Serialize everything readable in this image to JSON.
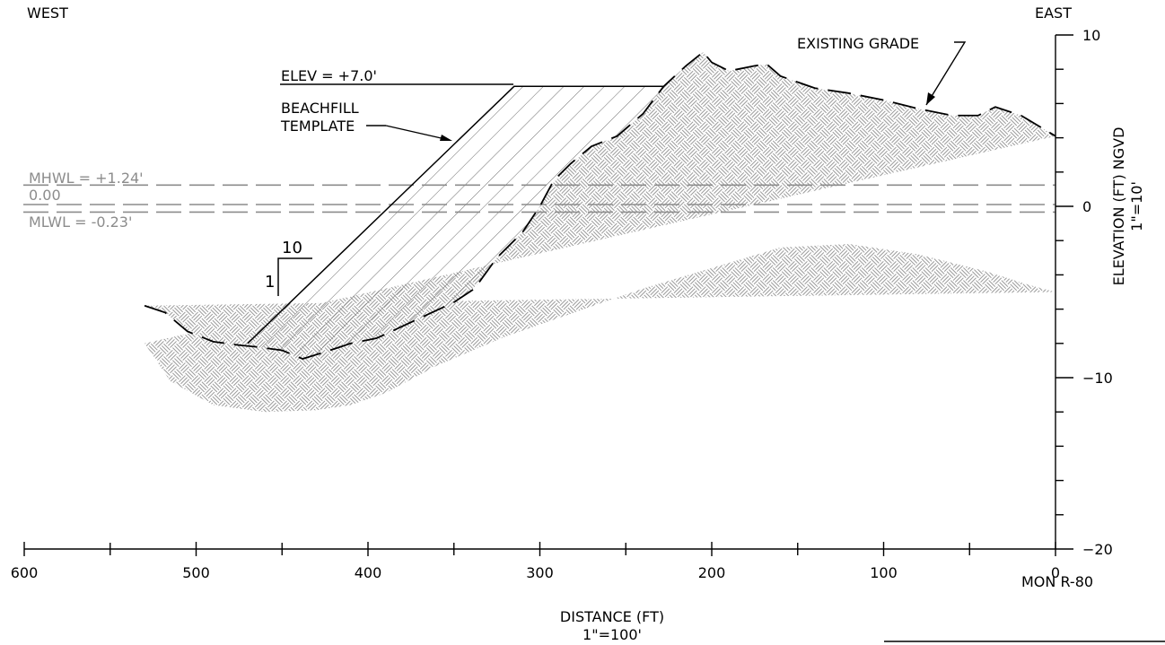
{
  "chart_data": {
    "type": "cross-section",
    "labels": {
      "west": "WEST",
      "east": "EAST",
      "existing_grade": "EXISTING GRADE",
      "elev": "ELEV  =  +7.0'",
      "template_line1": "BEACHFILL",
      "template_line2": "TEMPLATE",
      "mhwl": "MHWL  =  +1.24'",
      "zero": "0.00",
      "mlwl": "MLWL  =  -0.23'",
      "slope_run": "10",
      "slope_rise": "1",
      "mon": "MON  R-80",
      "xlabel": "DISTANCE  (FT)",
      "xscale": "1\"=100'",
      "ylabel": "ELEVATION  (FT)  NGVD",
      "yscale": "1\"=10'"
    },
    "x_axis": {
      "reversed": true,
      "range": [
        0,
        600
      ],
      "major_ticks": [
        600,
        500,
        400,
        300,
        200,
        100,
        0
      ],
      "minor_step": 50
    },
    "y_axis": {
      "range": [
        -20,
        10
      ],
      "major_ticks": [
        10,
        0,
        -10,
        -20
      ],
      "minor_step": 2
    },
    "water_levels": {
      "mhwl": 1.24,
      "zero": 0.0,
      "mlwl": -0.23
    },
    "template_elevation": 7.0,
    "template_slope_run_per_rise": 10,
    "existing_grade": [
      [
        530,
        -5.8
      ],
      [
        518,
        -6.2
      ],
      [
        505,
        -7.3
      ],
      [
        490,
        -7.9
      ],
      [
        475,
        -8.1
      ],
      [
        465,
        -8.2
      ],
      [
        450,
        -8.4
      ],
      [
        438,
        -8.9
      ],
      [
        425,
        -8.5
      ],
      [
        410,
        -8.0
      ],
      [
        395,
        -7.7
      ],
      [
        380,
        -7.0
      ],
      [
        365,
        -6.3
      ],
      [
        350,
        -5.6
      ],
      [
        338,
        -4.8
      ],
      [
        325,
        -3.0
      ],
      [
        310,
        -1.5
      ],
      [
        300,
        0.0
      ],
      [
        292,
        1.5
      ],
      [
        282,
        2.5
      ],
      [
        270,
        3.5
      ],
      [
        255,
        4.1
      ],
      [
        240,
        5.4
      ],
      [
        228,
        7.0
      ],
      [
        215,
        8.2
      ],
      [
        205,
        9.0
      ],
      [
        200,
        8.4
      ],
      [
        190,
        7.9
      ],
      [
        175,
        8.2
      ],
      [
        168,
        8.3
      ],
      [
        160,
        7.6
      ],
      [
        140,
        6.9
      ],
      [
        120,
        6.6
      ],
      [
        100,
        6.2
      ],
      [
        80,
        5.7
      ],
      [
        60,
        5.3
      ],
      [
        45,
        5.3
      ],
      [
        35,
        5.8
      ],
      [
        20,
        5.3
      ],
      [
        0,
        4.1
      ]
    ],
    "beachfill_template": [
      [
        470,
        -8.0
      ],
      [
        315,
        7.0
      ]
    ]
  }
}
